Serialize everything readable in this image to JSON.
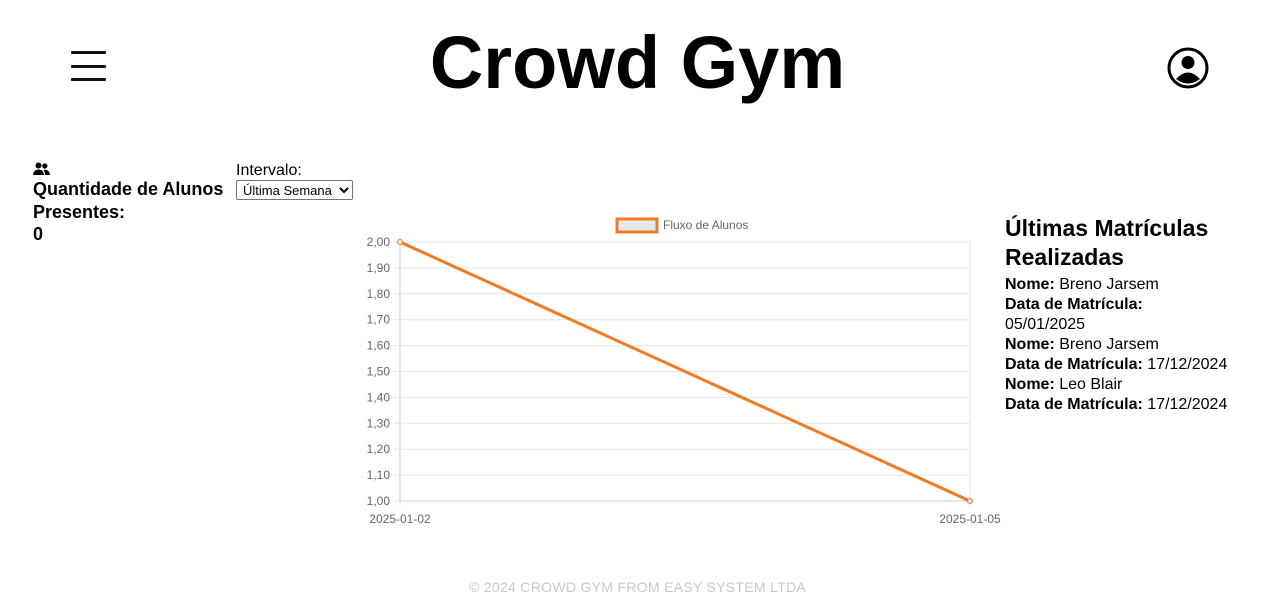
{
  "header": {
    "title": "Crowd Gym",
    "menu_icon": "hamburger-menu-icon",
    "profile_icon": "user-circle-icon"
  },
  "stats": {
    "icon": "users-icon",
    "label": "Quantidade de Alunos Presentes:",
    "value": "0"
  },
  "interval": {
    "label": "Intervalo:",
    "selected": "Última Semana"
  },
  "chart_data": {
    "type": "line",
    "title": "",
    "xlabel": "",
    "ylabel": "",
    "x": [
      "2025-01-02",
      "2025-01-05"
    ],
    "series": [
      {
        "name": "Fluxo de Alunos",
        "values": [
          2.0,
          1.0
        ],
        "color": "#f07b26"
      }
    ],
    "ylim": [
      1.0,
      2.0
    ],
    "yticks": [
      "2,00",
      "1,90",
      "1,80",
      "1,70",
      "1,60",
      "1,50",
      "1,40",
      "1,30",
      "1,20",
      "1,10",
      "1,00"
    ],
    "grid": true,
    "legend": "top-center"
  },
  "enrollments": {
    "title": "Últimas Matrículas Realizadas",
    "name_label": "Nome:",
    "date_label": "Data de Matrícula:",
    "items": [
      {
        "name": "Breno Jarsem",
        "date": "05/01/2025"
      },
      {
        "name": "Breno Jarsem",
        "date": "17/12/2024"
      },
      {
        "name": "Leo Blair",
        "date": "17/12/2024"
      }
    ]
  },
  "footer": {
    "text": "© 2024 CROWD GYM FROM EASY SYSTEM LTDA"
  }
}
